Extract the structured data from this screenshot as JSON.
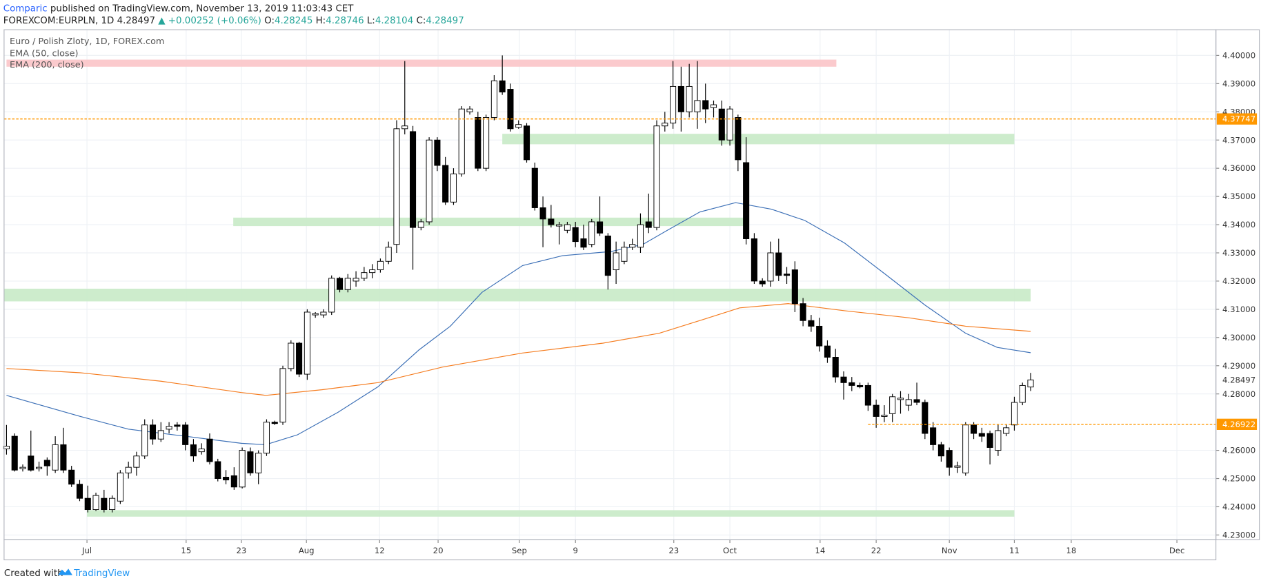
{
  "header": {
    "author": "Comparic",
    "published": "published on TradingView.com, November 13, 2019 11:03:43 CET",
    "symbol": "FOREXCOM:EURPLN, 1D",
    "price": "4.28497",
    "change": "▲ +0.00252 (+0.06%)",
    "ohlc": [
      {
        "label": "O:",
        "value": "4.28245"
      },
      {
        "label": "H:",
        "value": "4.28746"
      },
      {
        "label": "L:",
        "value": "4.28104"
      },
      {
        "label": "C:",
        "value": "4.28497"
      }
    ]
  },
  "footer": {
    "text": "Created with",
    "brand": "TradingView"
  },
  "chart_data": {
    "type": "candlestick",
    "title": "Euro / Polish Zloty, 1D, FOREX.com",
    "up_color": "#ffffff",
    "down_color": "#000000",
    "grid": true,
    "xlim": [
      -0.3,
      148.8
    ],
    "ylim": [
      4.2283,
      4.4091
    ],
    "xticks": [
      {
        "value": 9.9,
        "label": "Jul"
      },
      {
        "value": 22.1,
        "label": "15"
      },
      {
        "value": 28.9,
        "label": "23"
      },
      {
        "value": 36.9,
        "label": "Aug"
      },
      {
        "value": 45.9,
        "label": "12"
      },
      {
        "value": 53.1,
        "label": "20"
      },
      {
        "value": 63.1,
        "label": "Sep"
      },
      {
        "value": 70.0,
        "label": "9"
      },
      {
        "value": 82.1,
        "label": "23"
      },
      {
        "value": 89.0,
        "label": "Oct"
      },
      {
        "value": 100.1,
        "label": "14"
      },
      {
        "value": 107.0,
        "label": "22"
      },
      {
        "value": 116.0,
        "label": "Nov"
      },
      {
        "value": 124.0,
        "label": "11"
      },
      {
        "value": 131.0,
        "label": "18"
      },
      {
        "value": 144.0,
        "label": "Dec"
      }
    ],
    "yticks": [
      {
        "value": 4.23,
        "label": "4.23000"
      },
      {
        "value": 4.24,
        "label": "4.24000"
      },
      {
        "value": 4.25,
        "label": "4.25000"
      },
      {
        "value": 4.26,
        "label": "4.26000"
      },
      {
        "value": 4.28,
        "label": "4.28000"
      },
      {
        "value": 4.29,
        "label": "4.29000"
      },
      {
        "value": 4.3,
        "label": "4.30000"
      },
      {
        "value": 4.31,
        "label": "4.31000"
      },
      {
        "value": 4.32,
        "label": "4.32000"
      },
      {
        "value": 4.33,
        "label": "4.33000"
      },
      {
        "value": 4.34,
        "label": "4.34000"
      },
      {
        "value": 4.35,
        "label": "4.35000"
      },
      {
        "value": 4.36,
        "label": "4.36000"
      },
      {
        "value": 4.37,
        "label": "4.37000"
      },
      {
        "value": 4.38,
        "label": "4.38000"
      },
      {
        "value": 4.39,
        "label": "4.39000"
      },
      {
        "value": 4.4,
        "label": "4.40000"
      }
    ],
    "candles": [
      [
        4.2605,
        4.269,
        4.2585,
        4.2615
      ],
      [
        4.265,
        4.266,
        4.2525,
        4.253
      ],
      [
        4.2535,
        4.255,
        4.2525,
        4.254
      ],
      [
        4.258,
        4.267,
        4.2525,
        4.253
      ],
      [
        4.2535,
        4.256,
        4.2525,
        4.254
      ],
      [
        4.2565,
        4.2575,
        4.251,
        4.2545
      ],
      [
        4.253,
        4.265,
        4.252,
        4.262
      ],
      [
        4.262,
        4.268,
        4.252,
        4.253
      ],
      [
        4.253,
        4.2545,
        4.247,
        4.248
      ],
      [
        4.248,
        4.2495,
        4.242,
        4.243
      ],
      [
        4.243,
        4.2475,
        4.238,
        4.239
      ],
      [
        4.239,
        4.245,
        4.2385,
        4.244
      ],
      [
        4.243,
        4.246,
        4.238,
        4.239
      ],
      [
        4.239,
        4.244,
        4.238,
        4.243
      ],
      [
        4.242,
        4.253,
        4.241,
        4.252
      ],
      [
        4.252,
        4.256,
        4.25,
        4.254
      ],
      [
        4.254,
        4.2595,
        4.251,
        4.258
      ],
      [
        4.258,
        4.271,
        4.257,
        4.269
      ],
      [
        4.269,
        4.271,
        4.262,
        4.264
      ],
      [
        4.264,
        4.27,
        4.263,
        4.267
      ],
      [
        4.2675,
        4.27,
        4.266,
        4.2685
      ],
      [
        4.269,
        4.27,
        4.267,
        4.2685
      ],
      [
        4.269,
        4.27,
        4.26,
        4.262
      ],
      [
        4.262,
        4.264,
        4.256,
        4.258
      ],
      [
        4.2595,
        4.2625,
        4.2585,
        4.2605
      ],
      [
        4.264,
        4.266,
        4.255,
        4.256
      ],
      [
        4.256,
        4.257,
        4.249,
        4.25
      ],
      [
        4.2505,
        4.253,
        4.248,
        4.2495
      ],
      [
        4.251,
        4.254,
        4.246,
        4.247
      ],
      [
        4.247,
        4.261,
        4.2465,
        4.26
      ],
      [
        4.2595,
        4.261,
        4.251,
        4.252
      ],
      [
        4.252,
        4.26,
        4.248,
        4.259
      ],
      [
        4.259,
        4.271,
        4.258,
        4.27
      ],
      [
        4.27,
        4.2705,
        4.269,
        4.2695
      ],
      [
        4.27,
        4.29,
        4.269,
        4.289
      ],
      [
        4.289,
        4.299,
        4.288,
        4.298
      ],
      [
        4.298,
        4.2985,
        4.286,
        4.287
      ],
      [
        4.287,
        4.31,
        4.285,
        4.309
      ],
      [
        4.308,
        4.309,
        4.307,
        4.3085
      ],
      [
        4.308,
        4.31,
        4.307,
        4.309
      ],
      [
        4.309,
        4.322,
        4.308,
        4.321
      ],
      [
        4.321,
        4.3215,
        4.316,
        4.317
      ],
      [
        4.317,
        4.3225,
        4.316,
        4.321
      ],
      [
        4.32,
        4.3235,
        4.318,
        4.321
      ],
      [
        4.321,
        4.325,
        4.32,
        4.323
      ],
      [
        4.323,
        4.326,
        4.321,
        4.324
      ],
      [
        4.324,
        4.328,
        4.323,
        4.327
      ],
      [
        4.327,
        4.334,
        4.326,
        4.332
      ],
      [
        4.333,
        4.377,
        4.33,
        4.374
      ],
      [
        4.374,
        4.398,
        4.372,
        4.375
      ],
      [
        4.373,
        4.375,
        4.324,
        4.339
      ],
      [
        4.339,
        4.342,
        4.338,
        4.341
      ],
      [
        4.341,
        4.371,
        4.34,
        4.37
      ],
      [
        4.37,
        4.371,
        4.359,
        4.361
      ],
      [
        4.361,
        4.364,
        4.347,
        4.348
      ],
      [
        4.348,
        4.36,
        4.347,
        4.358
      ],
      [
        4.358,
        4.382,
        4.357,
        4.381
      ],
      [
        4.38,
        4.382,
        4.379,
        4.381
      ],
      [
        4.378,
        4.38,
        4.359,
        4.36
      ],
      [
        4.36,
        4.379,
        4.359,
        4.378
      ],
      [
        4.378,
        4.393,
        4.377,
        4.391
      ],
      [
        4.391,
        4.4,
        4.386,
        4.387
      ],
      [
        4.388,
        4.39,
        4.373,
        4.374
      ],
      [
        4.3745,
        4.377,
        4.374,
        4.3755
      ],
      [
        4.375,
        4.376,
        4.362,
        4.363
      ],
      [
        4.36,
        4.362,
        4.345,
        4.346
      ],
      [
        4.346,
        4.35,
        4.332,
        4.342
      ],
      [
        4.342,
        4.347,
        4.339,
        4.34
      ],
      [
        4.3395,
        4.341,
        4.333,
        4.34
      ],
      [
        4.338,
        4.341,
        4.337,
        4.34
      ],
      [
        4.339,
        4.341,
        4.332,
        4.334
      ],
      [
        4.335,
        4.34,
        4.331,
        4.332
      ],
      [
        4.333,
        4.342,
        4.332,
        4.341
      ],
      [
        4.341,
        4.35,
        4.336,
        4.337
      ],
      [
        4.336,
        4.337,
        4.317,
        4.322
      ],
      [
        4.324,
        4.334,
        4.319,
        4.33
      ],
      [
        4.327,
        4.334,
        4.326,
        4.332
      ],
      [
        4.332,
        4.335,
        4.331,
        4.333
      ],
      [
        4.332,
        4.344,
        4.33,
        4.34
      ],
      [
        4.341,
        4.351,
        4.337,
        4.339
      ],
      [
        4.339,
        4.377,
        4.338,
        4.375
      ],
      [
        4.375,
        4.38,
        4.373,
        4.376
      ],
      [
        4.376,
        4.398,
        4.374,
        4.389
      ],
      [
        4.389,
        4.396,
        4.373,
        4.38
      ],
      [
        4.38,
        4.397,
        4.378,
        4.389
      ],
      [
        4.38,
        4.398,
        4.374,
        4.384
      ],
      [
        4.384,
        4.39,
        4.376,
        4.381
      ],
      [
        4.3815,
        4.384,
        4.378,
        4.3825
      ],
      [
        4.381,
        4.384,
        4.368,
        4.37
      ],
      [
        4.37,
        4.382,
        4.368,
        4.381
      ],
      [
        4.378,
        4.379,
        4.359,
        4.363
      ],
      [
        4.362,
        4.371,
        4.333,
        4.335
      ],
      [
        4.335,
        4.337,
        4.319,
        4.32
      ],
      [
        4.32,
        4.321,
        4.318,
        4.319
      ],
      [
        4.32,
        4.334,
        4.318,
        4.33
      ],
      [
        4.33,
        4.335,
        4.32,
        4.322
      ],
      [
        4.3225,
        4.325,
        4.319,
        4.322
      ],
      [
        4.324,
        4.327,
        4.309,
        4.312
      ],
      [
        4.312,
        4.314,
        4.304,
        4.306
      ],
      [
        4.306,
        4.308,
        4.302,
        4.304
      ],
      [
        4.304,
        4.307,
        4.295,
        4.297
      ],
      [
        4.297,
        4.299,
        4.291,
        4.293
      ],
      [
        4.293,
        4.296,
        4.284,
        4.286
      ],
      [
        4.286,
        4.288,
        4.278,
        4.284
      ],
      [
        4.284,
        4.286,
        4.281,
        4.283
      ],
      [
        4.283,
        4.284,
        4.282,
        4.2825
      ],
      [
        4.283,
        4.284,
        4.274,
        4.276
      ],
      [
        4.276,
        4.278,
        4.268,
        4.272
      ],
      [
        4.272,
        4.276,
        4.27,
        4.2725
      ],
      [
        4.273,
        4.28,
        4.27,
        4.279
      ],
      [
        4.278,
        4.281,
        4.273,
        4.2785
      ],
      [
        4.276,
        4.28,
        4.274,
        4.278
      ],
      [
        4.278,
        4.284,
        4.276,
        4.277
      ],
      [
        4.277,
        4.278,
        4.264,
        4.266
      ],
      [
        4.268,
        4.27,
        4.26,
        4.262
      ],
      [
        4.262,
        4.263,
        4.256,
        4.258
      ],
      [
        4.26,
        4.261,
        4.251,
        4.254
      ],
      [
        4.254,
        4.256,
        4.252,
        4.2545
      ],
      [
        4.252,
        4.27,
        4.251,
        4.269
      ],
      [
        4.269,
        4.27,
        4.264,
        4.266
      ],
      [
        4.266,
        4.268,
        4.263,
        4.265
      ],
      [
        4.266,
        4.267,
        4.255,
        4.261
      ],
      [
        4.26,
        4.269,
        4.258,
        4.267
      ],
      [
        4.266,
        4.269,
        4.265,
        4.268
      ],
      [
        4.269,
        4.279,
        4.267,
        4.277
      ],
      [
        4.277,
        4.284,
        4.276,
        4.283
      ],
      [
        4.28245,
        4.28746,
        4.28104,
        4.28497
      ]
    ],
    "series": [
      {
        "name": "EMA (50, close)",
        "color": "#3b6fb6",
        "x": [
          0,
          9.1,
          15.0,
          22.0,
          28.9,
          31.9,
          35.8,
          40.8,
          45.7,
          50.7,
          54.6,
          58.5,
          63.5,
          68.4,
          74.4,
          78.3,
          81.3,
          85.3,
          89.7,
          94.1,
          98.2,
          103.1,
          108.1,
          113.0,
          118.0,
          121.9,
          126
        ],
        "values": [
          4.2795,
          4.272,
          4.2675,
          4.265,
          4.2625,
          4.262,
          4.2655,
          4.2735,
          4.2825,
          4.2955,
          4.304,
          4.316,
          4.3255,
          4.329,
          4.3305,
          4.333,
          4.338,
          4.3445,
          4.3478,
          4.3455,
          4.3415,
          4.3335,
          4.3225,
          4.3115,
          4.3015,
          4.2965,
          4.2946
        ]
      },
      {
        "name": "EMA (200, close)",
        "color": "#f57c1f",
        "x": [
          0,
          9.1,
          19.0,
          28.9,
          31.9,
          38.8,
          45.7,
          53.6,
          63.5,
          73.4,
          80.3,
          85.3,
          90.2,
          96.2,
          103.1,
          111.0,
          118.0,
          126
        ],
        "values": [
          4.289,
          4.2875,
          4.2845,
          4.2805,
          4.2795,
          4.2815,
          4.284,
          4.2895,
          4.2945,
          4.298,
          4.3015,
          4.306,
          4.3105,
          4.312,
          4.3095,
          4.307,
          4.304,
          4.3022
        ]
      }
    ],
    "zones": [
      {
        "low": 4.396,
        "high": 4.3985,
        "from": 0,
        "to": 102.1,
        "color": "#fbc4c8"
      },
      {
        "low": 4.3685,
        "high": 4.3722,
        "from": 61.0,
        "to": 124.0,
        "color": "#c8eac6"
      },
      {
        "low": 4.3395,
        "high": 4.3425,
        "from": 27.9,
        "to": 91.0,
        "color": "#c8eac6"
      },
      {
        "low": 4.3128,
        "high": 4.3173,
        "from": -0.3,
        "to": 126,
        "color": "#c8eac6"
      },
      {
        "low": 4.2365,
        "high": 4.2388,
        "from": 9.9,
        "to": 124.0,
        "color": "#c8eac6"
      }
    ],
    "hlines": [
      {
        "value": 4.37747,
        "from": -0.3,
        "color": "#ff9800"
      },
      {
        "value": 4.26922,
        "from": 106.0,
        "color": "#ff9800"
      }
    ]
  }
}
